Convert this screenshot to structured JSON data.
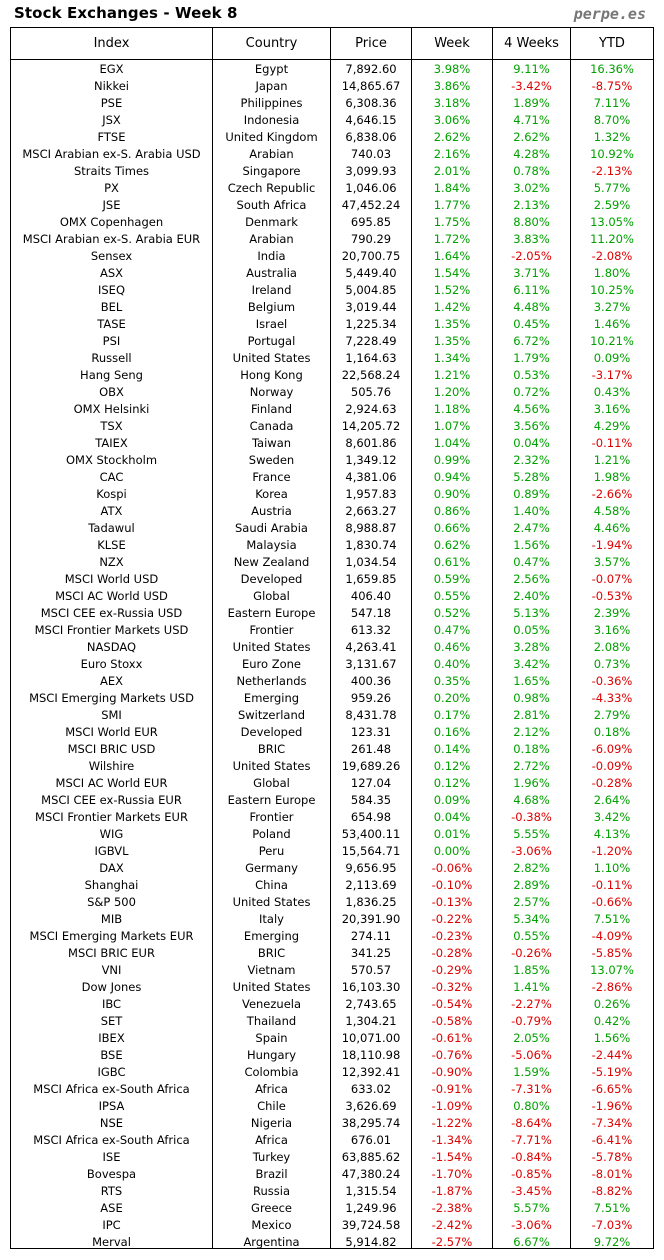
{
  "title": "Stock Exchanges - Week 8",
  "brand": "perpe.es",
  "colors": {
    "positive": "#00a000",
    "negative": "#e00000"
  },
  "chart_data": {
    "type": "table",
    "title": "Stock Exchanges - Week 8",
    "columns": [
      "Index",
      "Country",
      "Price",
      "Week",
      "4 Weeks",
      "YTD"
    ],
    "rows": [
      [
        "EGX",
        "Egypt",
        "7,892.60",
        "3.98%",
        "9.11%",
        "16.36%"
      ],
      [
        "Nikkei",
        "Japan",
        "14,865.67",
        "3.86%",
        "-3.42%",
        "-8.75%"
      ],
      [
        "PSE",
        "Philippines",
        "6,308.36",
        "3.18%",
        "1.89%",
        "7.11%"
      ],
      [
        "JSX",
        "Indonesia",
        "4,646.15",
        "3.06%",
        "4.71%",
        "8.70%"
      ],
      [
        "FTSE",
        "United Kingdom",
        "6,838.06",
        "2.62%",
        "2.62%",
        "1.32%"
      ],
      [
        "MSCI Arabian ex-S. Arabia USD",
        "Arabian",
        "740.03",
        "2.16%",
        "4.28%",
        "10.92%"
      ],
      [
        "Straits Times",
        "Singapore",
        "3,099.93",
        "2.01%",
        "0.78%",
        "-2.13%"
      ],
      [
        "PX",
        "Czech Republic",
        "1,046.06",
        "1.84%",
        "3.02%",
        "5.77%"
      ],
      [
        "JSE",
        "South Africa",
        "47,452.24",
        "1.77%",
        "2.13%",
        "2.59%"
      ],
      [
        "OMX Copenhagen",
        "Denmark",
        "695.85",
        "1.75%",
        "8.80%",
        "13.05%"
      ],
      [
        "MSCI Arabian ex-S. Arabia EUR",
        "Arabian",
        "790.29",
        "1.72%",
        "3.83%",
        "11.20%"
      ],
      [
        "Sensex",
        "India",
        "20,700.75",
        "1.64%",
        "-2.05%",
        "-2.08%"
      ],
      [
        "ASX",
        "Australia",
        "5,449.40",
        "1.54%",
        "3.71%",
        "1.80%"
      ],
      [
        "ISEQ",
        "Ireland",
        "5,004.85",
        "1.52%",
        "6.11%",
        "10.25%"
      ],
      [
        "BEL",
        "Belgium",
        "3,019.44",
        "1.42%",
        "4.48%",
        "3.27%"
      ],
      [
        "TASE",
        "Israel",
        "1,225.34",
        "1.35%",
        "0.45%",
        "1.46%"
      ],
      [
        "PSI",
        "Portugal",
        "7,228.49",
        "1.35%",
        "6.72%",
        "10.21%"
      ],
      [
        "Russell",
        "United States",
        "1,164.63",
        "1.34%",
        "1.79%",
        "0.09%"
      ],
      [
        "Hang Seng",
        "Hong Kong",
        "22,568.24",
        "1.21%",
        "0.53%",
        "-3.17%"
      ],
      [
        "OBX",
        "Norway",
        "505.76",
        "1.20%",
        "0.72%",
        "0.43%"
      ],
      [
        "OMX Helsinki",
        "Finland",
        "2,924.63",
        "1.18%",
        "4.56%",
        "3.16%"
      ],
      [
        "TSX",
        "Canada",
        "14,205.72",
        "1.07%",
        "3.56%",
        "4.29%"
      ],
      [
        "TAIEX",
        "Taiwan",
        "8,601.86",
        "1.04%",
        "0.04%",
        "-0.11%"
      ],
      [
        "OMX Stockholm",
        "Sweden",
        "1,349.12",
        "0.99%",
        "2.32%",
        "1.21%"
      ],
      [
        "CAC",
        "France",
        "4,381.06",
        "0.94%",
        "5.28%",
        "1.98%"
      ],
      [
        "Kospi",
        "Korea",
        "1,957.83",
        "0.90%",
        "0.89%",
        "-2.66%"
      ],
      [
        "ATX",
        "Austria",
        "2,663.27",
        "0.86%",
        "1.40%",
        "4.58%"
      ],
      [
        "Tadawul",
        "Saudi Arabia",
        "8,988.87",
        "0.66%",
        "2.47%",
        "4.46%"
      ],
      [
        "KLSE",
        "Malaysia",
        "1,830.74",
        "0.62%",
        "1.56%",
        "-1.94%"
      ],
      [
        "NZX",
        "New Zealand",
        "1,034.54",
        "0.61%",
        "0.47%",
        "3.57%"
      ],
      [
        "MSCI World USD",
        "Developed",
        "1,659.85",
        "0.59%",
        "2.56%",
        "-0.07%"
      ],
      [
        "MSCI AC World USD",
        "Global",
        "406.40",
        "0.55%",
        "2.40%",
        "-0.53%"
      ],
      [
        "MSCI CEE ex-Russia USD",
        "Eastern Europe",
        "547.18",
        "0.52%",
        "5.13%",
        "2.39%"
      ],
      [
        "MSCI Frontier Markets USD",
        "Frontier",
        "613.32",
        "0.47%",
        "0.05%",
        "3.16%"
      ],
      [
        "NASDAQ",
        "United States",
        "4,263.41",
        "0.46%",
        "3.28%",
        "2.08%"
      ],
      [
        "Euro Stoxx",
        "Euro Zone",
        "3,131.67",
        "0.40%",
        "3.42%",
        "0.73%"
      ],
      [
        "AEX",
        "Netherlands",
        "400.36",
        "0.35%",
        "1.65%",
        "-0.36%"
      ],
      [
        "MSCI Emerging Markets USD",
        "Emerging",
        "959.26",
        "0.20%",
        "0.98%",
        "-4.33%"
      ],
      [
        "SMI",
        "Switzerland",
        "8,431.78",
        "0.17%",
        "2.81%",
        "2.79%"
      ],
      [
        "MSCI World EUR",
        "Developed",
        "123.31",
        "0.16%",
        "2.12%",
        "0.18%"
      ],
      [
        "MSCI BRIC USD",
        "BRIC",
        "261.48",
        "0.14%",
        "0.18%",
        "-6.09%"
      ],
      [
        "Wilshire",
        "United States",
        "19,689.26",
        "0.12%",
        "2.72%",
        "-0.09%"
      ],
      [
        "MSCI AC World EUR",
        "Global",
        "127.04",
        "0.12%",
        "1.96%",
        "-0.28%"
      ],
      [
        "MSCI CEE ex-Russia EUR",
        "Eastern Europe",
        "584.35",
        "0.09%",
        "4.68%",
        "2.64%"
      ],
      [
        "MSCI Frontier Markets EUR",
        "Frontier",
        "654.98",
        "0.04%",
        "-0.38%",
        "3.42%"
      ],
      [
        "WIG",
        "Poland",
        "53,400.11",
        "0.01%",
        "5.55%",
        "4.13%"
      ],
      [
        "IGBVL",
        "Peru",
        "15,564.71",
        "0.00%",
        "-3.06%",
        "-1.20%"
      ],
      [
        "DAX",
        "Germany",
        "9,656.95",
        "-0.06%",
        "2.82%",
        "1.10%"
      ],
      [
        "Shanghai",
        "China",
        "2,113.69",
        "-0.10%",
        "2.89%",
        "-0.11%"
      ],
      [
        "S&P 500",
        "United States",
        "1,836.25",
        "-0.13%",
        "2.57%",
        "-0.66%"
      ],
      [
        "MIB",
        "Italy",
        "20,391.90",
        "-0.22%",
        "5.34%",
        "7.51%"
      ],
      [
        "MSCI Emerging Markets EUR",
        "Emerging",
        "274.11",
        "-0.23%",
        "0.55%",
        "-4.09%"
      ],
      [
        "MSCI BRIC EUR",
        "BRIC",
        "341.25",
        "-0.28%",
        "-0.26%",
        "-5.85%"
      ],
      [
        "VNI",
        "Vietnam",
        "570.57",
        "-0.29%",
        "1.85%",
        "13.07%"
      ],
      [
        "Dow Jones",
        "United States",
        "16,103.30",
        "-0.32%",
        "1.41%",
        "-2.86%"
      ],
      [
        "IBC",
        "Venezuela",
        "2,743.65",
        "-0.54%",
        "-2.27%",
        "0.26%"
      ],
      [
        "SET",
        "Thailand",
        "1,304.21",
        "-0.58%",
        "-0.79%",
        "0.42%"
      ],
      [
        "IBEX",
        "Spain",
        "10,071.00",
        "-0.61%",
        "2.05%",
        "1.56%"
      ],
      [
        "BSE",
        "Hungary",
        "18,110.98",
        "-0.76%",
        "-5.06%",
        "-2.44%"
      ],
      [
        "IGBC",
        "Colombia",
        "12,392.41",
        "-0.90%",
        "1.59%",
        "-5.19%"
      ],
      [
        "MSCI Africa ex-South Africa",
        "Africa",
        "633.02",
        "-0.91%",
        "-7.31%",
        "-6.65%"
      ],
      [
        "IPSA",
        "Chile",
        "3,626.69",
        "-1.09%",
        "0.80%",
        "-1.96%"
      ],
      [
        "NSE",
        "Nigeria",
        "38,295.74",
        "-1.22%",
        "-8.64%",
        "-7.34%"
      ],
      [
        "MSCI Africa ex-South Africa",
        "Africa",
        "676.01",
        "-1.34%",
        "-7.71%",
        "-6.41%"
      ],
      [
        "ISE",
        "Turkey",
        "63,885.62",
        "-1.54%",
        "-0.84%",
        "-5.78%"
      ],
      [
        "Bovespa",
        "Brazil",
        "47,380.24",
        "-1.70%",
        "-0.85%",
        "-8.01%"
      ],
      [
        "RTS",
        "Russia",
        "1,315.54",
        "-1.87%",
        "-3.45%",
        "-8.82%"
      ],
      [
        "ASE",
        "Greece",
        "1,249.96",
        "-2.38%",
        "5.57%",
        "7.51%"
      ],
      [
        "IPC",
        "Mexico",
        "39,724.58",
        "-2.42%",
        "-3.06%",
        "-7.03%"
      ],
      [
        "Merval",
        "Argentina",
        "5,914.82",
        "-2.57%",
        "6.67%",
        "9.72%"
      ]
    ]
  }
}
